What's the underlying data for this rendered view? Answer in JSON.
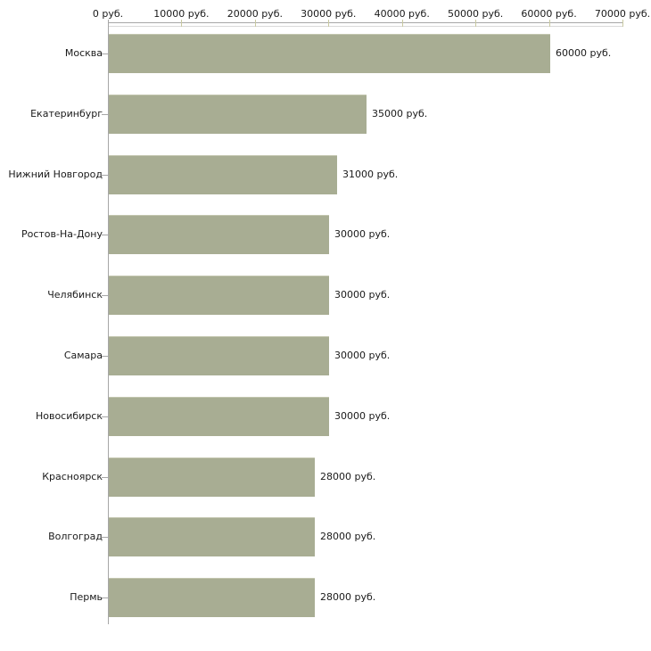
{
  "chart_data": {
    "type": "bar",
    "orientation": "horizontal",
    "categories": [
      "Москва",
      "Екатеринбург",
      "Нижний Новгород",
      "Ростов-На-Дону",
      "Челябинск",
      "Самара",
      "Новосибирск",
      "Красноярск",
      "Волгоград",
      "Пермь"
    ],
    "values": [
      60000,
      35000,
      31000,
      30000,
      30000,
      30000,
      30000,
      28000,
      28000,
      28000
    ],
    "value_labels": [
      "60000 руб.",
      "35000 руб.",
      "31000 руб.",
      "30000 руб.",
      "30000 руб.",
      "30000 руб.",
      "30000 руб.",
      "28000 руб.",
      "28000 руб.",
      "28000 руб."
    ],
    "x_tick_values": [
      0,
      10000,
      20000,
      30000,
      40000,
      50000,
      60000,
      70000
    ],
    "x_tick_labels": [
      "0 руб.",
      "10000 руб.",
      "20000 руб.",
      "30000 руб.",
      "40000 руб.",
      "50000 руб.",
      "60000 руб.",
      "70000 руб."
    ],
    "xlim": [
      0,
      70000
    ],
    "axis_position": "top",
    "grid": false,
    "legend": false,
    "colors": {
      "bar": "#a8ad93",
      "bar_highlight": "#c3c6af",
      "axis_line": "#a6a6a6",
      "axis_shadow": "#d9d9d9",
      "tick": "#c9c9a1",
      "text": "#1a1a1a",
      "background": "#ffffff"
    }
  }
}
